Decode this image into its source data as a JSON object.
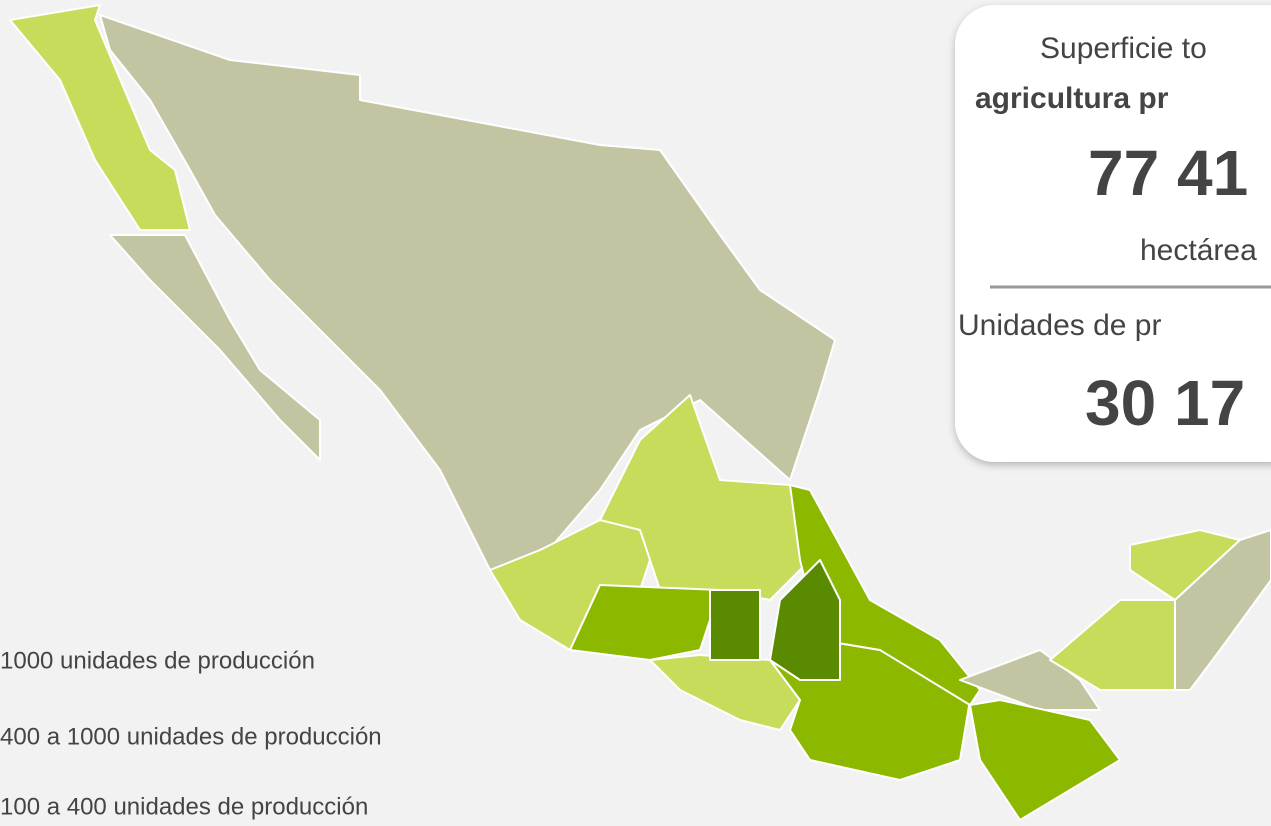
{
  "card": {
    "line1": "Superficie to",
    "line2": "agricultura pr",
    "value1": "77 41",
    "unit1": "hectárea",
    "line3": "Unidades de pr",
    "value2": "30 17"
  },
  "legend": [
    "1000 unidades de producción",
    "400 a 1000 unidades de producción",
    "100 a 400 unidades de producción"
  ]
}
